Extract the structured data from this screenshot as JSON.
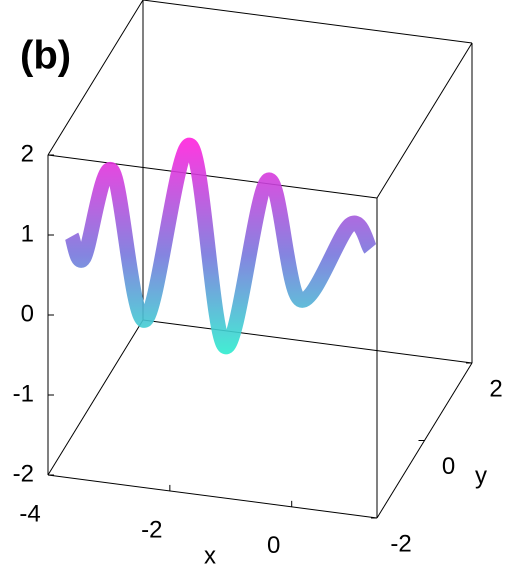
{
  "chart_data": {
    "type": "surface3d",
    "title": "(b)",
    "xlabel": "x",
    "ylabel": "y",
    "xlim": [
      -4,
      1.4
    ],
    "ylim": [
      -2,
      2
    ],
    "zlim": [
      -2,
      2
    ],
    "xticks": [
      -4,
      -2,
      0
    ],
    "yticks": [
      -2,
      0,
      2
    ],
    "zticks": [
      -2,
      -1,
      0,
      1,
      2
    ],
    "series": [
      {
        "y": -1,
        "x": [
          -4,
          -3.8,
          -3.34,
          -2.8,
          -2.06,
          -1.48,
          -0.78,
          -0.25,
          0.57,
          0.9
        ],
        "values": [
          0.5,
          0.25,
          1.39,
          -0.43,
          1.83,
          -0.63,
          1.52,
          0.08,
          1.1,
          0.83
        ],
        "color_high": "#ff22dd",
        "color_mid": "#7777dd",
        "color_low": "#22ffcc"
      }
    ]
  }
}
